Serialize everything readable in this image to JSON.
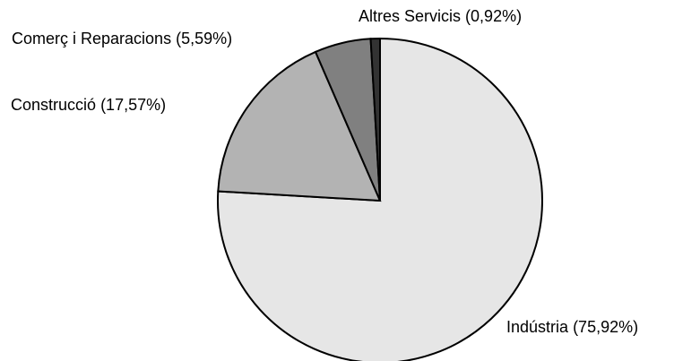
{
  "chart_data": {
    "type": "pie",
    "categories": [
      "Indústria",
      "Construcció",
      "Comerç i Reparacions",
      "Altres Servicis"
    ],
    "values": [
      75.92,
      17.57,
      5.59,
      0.92
    ],
    "value_labels": [
      "(75,92%)",
      "(17,57%)",
      "(5,59%)",
      "(0,92%)"
    ],
    "colors": [
      "#e6e6e6",
      "#b3b3b3",
      "#808080",
      "#333333"
    ]
  }
}
